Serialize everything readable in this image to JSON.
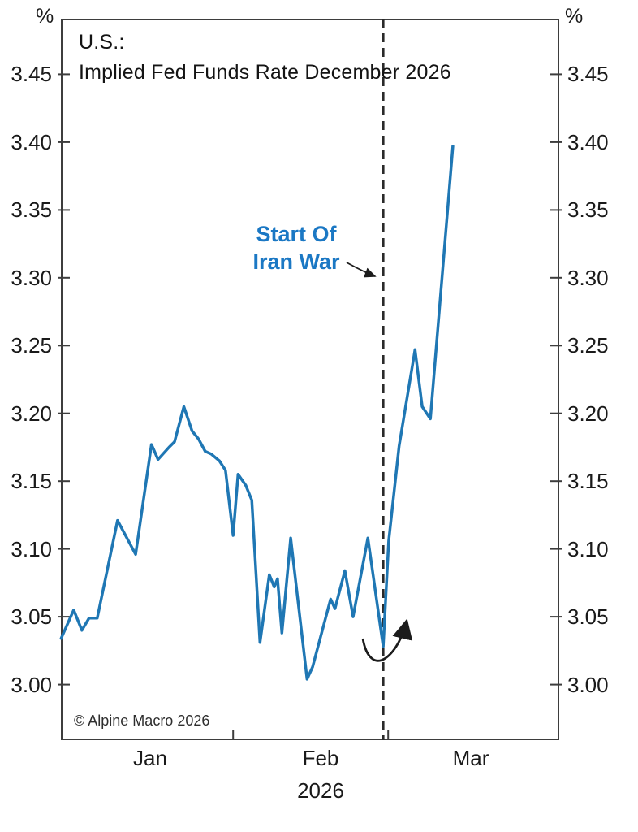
{
  "colors": {
    "line": "#1f77b4",
    "annotation_text": "#1b78c4",
    "axis": "#3d3d3d",
    "event_dash": "#2a2a2a",
    "arrow": "#1c1c1c"
  },
  "labels": {
    "title_line1": "U.S.:",
    "title_line2": "Implied Fed Funds Rate December 2026",
    "annotation_line1": "Start Of",
    "annotation_line2": "Iran War",
    "copyright": "© Alpine Macro 2026",
    "unit_left": "%",
    "unit_right": "%",
    "x_axis_year": "2026"
  },
  "chart_data": {
    "type": "line",
    "title": "U.S.: Implied Fed Funds Rate December 2026",
    "x_unit": "days from Jan 1, 2026",
    "xlim_days": [
      -1.04,
      89.93
    ],
    "ylim": [
      2.959,
      3.491
    ],
    "y_unit": "%",
    "y_ticks": [
      "3.00",
      "3.05",
      "3.10",
      "3.15",
      "3.20",
      "3.25",
      "3.30",
      "3.35",
      "3.40",
      "3.45"
    ],
    "x_month_labels": [
      {
        "label": "Jan",
        "center_day": 15.3
      },
      {
        "label": "Feb",
        "center_day": 46.3
      },
      {
        "label": "Mar",
        "center_day": 73.8
      }
    ],
    "x_boundary_tick_days": [
      30.4,
      58.7
    ],
    "event_line": {
      "day": 57.8,
      "label": "Start Of Iran War"
    },
    "grid": false,
    "legend": false,
    "series": [
      {
        "name": "Implied Fed Funds Rate December 2026",
        "color": "#1f77b4",
        "days": [
          -1.0,
          1.3,
          2.8,
          4.1,
          5.6,
          9.3,
          12.6,
          15.5,
          16.7,
          18.7,
          19.7,
          21.4,
          22.9,
          24.1,
          25.3,
          26.4,
          27.9,
          29.0,
          30.4,
          31.3,
          32.7,
          33.8,
          35.3,
          37.0,
          37.9,
          38.5,
          39.3,
          40.9,
          43.9,
          44.9,
          48.2,
          49.0,
          50.8,
          52.3,
          55.0,
          57.8,
          58.8,
          60.7,
          63.6,
          64.9,
          66.4,
          70.5
        ],
        "values": [
          3.034,
          3.055,
          3.04,
          3.049,
          3.049,
          3.121,
          3.096,
          3.177,
          3.166,
          3.175,
          3.179,
          3.205,
          3.187,
          3.181,
          3.172,
          3.17,
          3.165,
          3.158,
          3.11,
          3.155,
          3.147,
          3.136,
          3.031,
          3.081,
          3.072,
          3.078,
          3.038,
          3.108,
          3.004,
          3.013,
          3.063,
          3.056,
          3.084,
          3.05,
          3.108,
          3.028,
          3.106,
          3.176,
          3.247,
          3.205,
          3.196,
          3.397
        ]
      }
    ]
  }
}
